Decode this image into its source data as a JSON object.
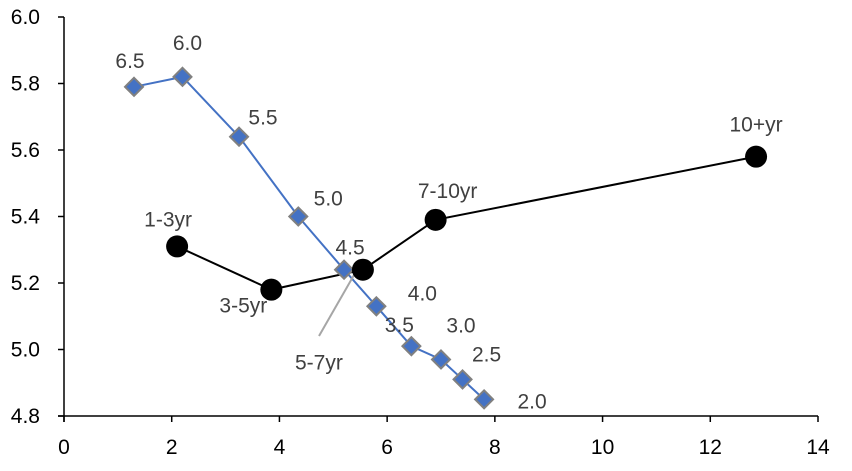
{
  "chart_data": {
    "type": "scatter",
    "title": "",
    "xlabel": "",
    "ylabel": "",
    "xlim": [
      0,
      14
    ],
    "ylim": [
      4.8,
      6.0
    ],
    "x_ticks": [
      0,
      2,
      4,
      6,
      8,
      10,
      12,
      14
    ],
    "y_ticks": [
      4.8,
      5.0,
      5.2,
      5.4,
      5.6,
      5.8,
      6.0
    ],
    "x_tick_labels": [
      "0",
      "2",
      "4",
      "6",
      "8",
      "10",
      "12",
      "14"
    ],
    "y_tick_labels": [
      "4.8",
      "5.0",
      "5.2",
      "5.4",
      "5.6",
      "5.8",
      "6.0"
    ],
    "grid": false,
    "legend": "none",
    "series": [
      {
        "marker": "diamond",
        "color": "#4472C4",
        "marker_edge_color": "#808080",
        "points": [
          {
            "x": 1.3,
            "y": 5.79,
            "label": "6.5"
          },
          {
            "x": 2.2,
            "y": 5.82,
            "label": "6.0"
          },
          {
            "x": 3.25,
            "y": 5.64,
            "label": "5.5"
          },
          {
            "x": 4.35,
            "y": 5.4,
            "label": "5.0"
          },
          {
            "x": 5.2,
            "y": 5.24,
            "label": "4.5"
          },
          {
            "x": 5.8,
            "y": 5.13,
            "label": "4.0"
          },
          {
            "x": 6.45,
            "y": 5.01,
            "label": "3.5"
          },
          {
            "x": 7.0,
            "y": 4.97,
            "label": "3.0"
          },
          {
            "x": 7.4,
            "y": 4.91,
            "label": "2.5"
          },
          {
            "x": 7.8,
            "y": 4.85,
            "label": "2.0"
          }
        ]
      },
      {
        "marker": "circle",
        "color": "#000000",
        "points": [
          {
            "x": 2.1,
            "y": 5.31,
            "label": "1-3yr"
          },
          {
            "x": 3.85,
            "y": 5.18,
            "label": "3-5yr"
          },
          {
            "x": 5.55,
            "y": 5.24,
            "label": "5-7yr"
          },
          {
            "x": 6.9,
            "y": 5.39,
            "label": "7-10yr"
          },
          {
            "x": 12.85,
            "y": 5.58,
            "label": "10+yr"
          }
        ]
      }
    ]
  }
}
